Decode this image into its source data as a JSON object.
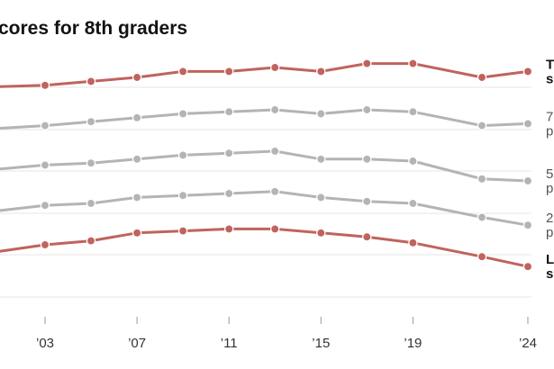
{
  "chart_data": {
    "type": "line",
    "title": "cores for 8th graders",
    "x_ticks": [
      "’03",
      "’07",
      "’11",
      "’15",
      "’19",
      "’24"
    ],
    "x": [
      2000,
      2003,
      2005,
      2007,
      2009,
      2011,
      2013,
      2015,
      2017,
      2019,
      2022,
      2024
    ],
    "grid": true,
    "series": [
      {
        "name": "T\ns",
        "color": "#c0635e",
        "bold": true,
        "values": [
          303,
          304,
          306,
          308,
          311,
          311,
          313,
          311,
          315,
          315,
          308,
          311
        ]
      },
      {
        "name": "7\np",
        "color": "#b4b4b4",
        "bold": false,
        "values": [
          291,
          293,
          295,
          297,
          299,
          300,
          301,
          299,
          301,
          300,
          293,
          294
        ]
      },
      {
        "name": "5\np",
        "color": "#b4b4b4",
        "bold": false,
        "values": [
          278,
          281,
          282,
          284,
          286,
          287,
          288,
          284,
          284,
          283,
          274,
          273
        ]
      },
      {
        "name": "2\np",
        "color": "#b4b4b4",
        "bold": false,
        "values": [
          262,
          266,
          267,
          270,
          271,
          272,
          273,
          270,
          268,
          267,
          260,
          256
        ]
      },
      {
        "name": "L\ns",
        "color": "#c0635e",
        "bold": true,
        "values": [
          246,
          251,
          253,
          257,
          258,
          259,
          259,
          257,
          255,
          252,
          245,
          240
        ]
      }
    ]
  }
}
